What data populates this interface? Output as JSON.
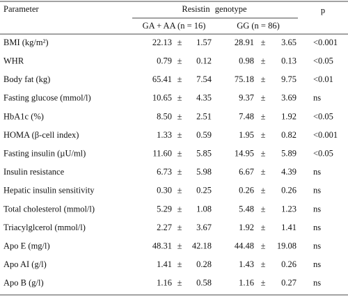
{
  "table": {
    "header": {
      "parameter": "Parameter",
      "group": "Resistin genotype",
      "p": "p",
      "sub": [
        "GA + AA (n = 16)",
        "GG (n = 86)"
      ]
    },
    "separator": "±",
    "rows": [
      [
        "BMI (kg/m²)",
        "22.13",
        "1.57",
        "28.91",
        "3.65",
        "<0.001"
      ],
      [
        "WHR",
        "0.79",
        "0.12",
        "0.98",
        "0.13",
        "<0.05"
      ],
      [
        "Body fat (kg)",
        "65.41",
        "7.54",
        "75.18",
        "9.75",
        "<0.01"
      ],
      [
        "Fasting glucose (mmol/l)",
        "10.65",
        "4.35",
        "9.37",
        "3.69",
        "ns"
      ],
      [
        "HbA1c (%)",
        "8.50",
        "2.51",
        "7.48",
        "1.92",
        "<0.05"
      ],
      [
        "HOMA (β-cell index)",
        "1.33",
        "0.59",
        "1.95",
        "0.82",
        "<0.001"
      ],
      [
        "Fasting insulin (µU/ml)",
        "11.60",
        "5.85",
        "14.95",
        "5.89",
        "<0.05"
      ],
      [
        "Insulin resistance",
        "6.73",
        "5.98",
        "6.67",
        "4.39",
        "ns"
      ],
      [
        "Hepatic insulin sensitivity",
        "0.30",
        "0.25",
        "0.26",
        "0.26",
        "ns"
      ],
      [
        "Total cholesterol (mmol/l)",
        "5.29",
        "1.08",
        "5.48",
        "1.23",
        "ns"
      ],
      [
        "Triacylglcerol (mmol/l)",
        "2.27",
        "3.67",
        "1.92",
        "1.41",
        "ns"
      ],
      [
        "Apo E (mg/l)",
        "48.31",
        "42.18",
        "44.48",
        "19.08",
        "ns"
      ],
      [
        "Apo AI (g/l)",
        "1.41",
        "0.28",
        "1.43",
        "0.26",
        "ns"
      ],
      [
        "Apo B (g/l)",
        "1.16",
        "0.58",
        "1.16",
        "0.27",
        "ns"
      ]
    ]
  }
}
